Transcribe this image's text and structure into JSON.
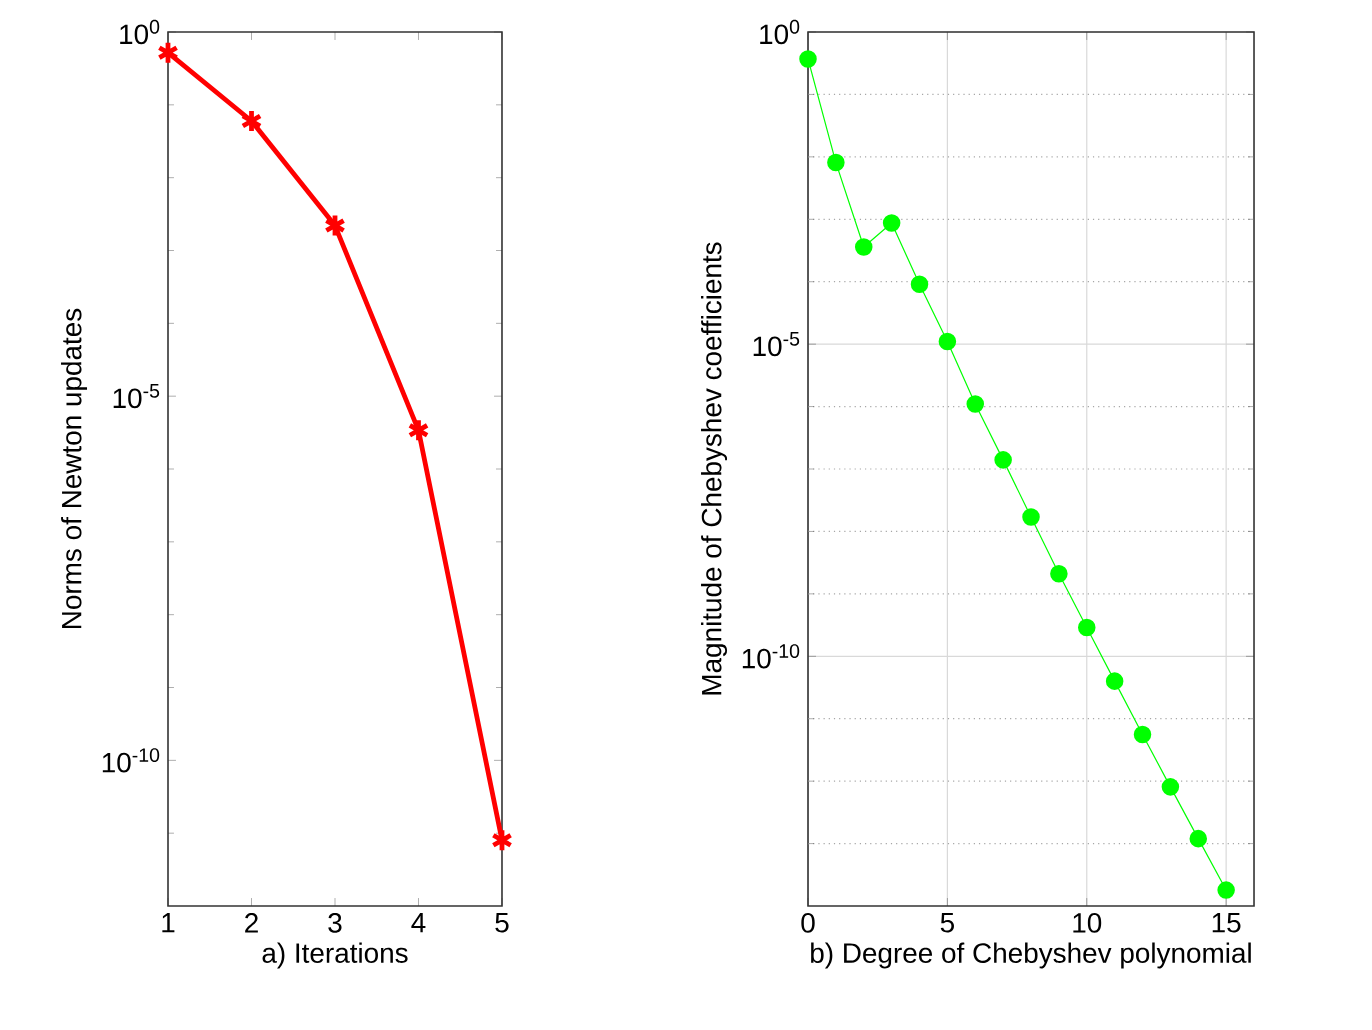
{
  "chart_data": [
    {
      "type": "line",
      "xlabel": "a) Iterations",
      "ylabel": "Norms of Newton updates",
      "log": "y",
      "grid": false,
      "marker": "cross",
      "line_style": "solid",
      "x": [
        1,
        2,
        3,
        4,
        5
      ],
      "series": [
        {
          "color": "#ff0000",
          "values": [
            0.52,
            0.06,
            0.0022,
            3.4e-06,
            8e-12
          ]
        }
      ],
      "xlim": [
        1,
        5
      ],
      "xticks": [
        1,
        2,
        3,
        4,
        5
      ],
      "ylim": [
        1e-12,
        1
      ],
      "yticks": [
        {
          "value": 1,
          "label": "10$^{0}$"
        },
        {
          "value": 0.1,
          "label": null
        },
        {
          "value": 0.01,
          "label": null
        },
        {
          "value": 0.001,
          "label": null
        },
        {
          "value": 0.0001,
          "label": null
        },
        {
          "value": 1e-05,
          "label": "10$^{-5}$"
        },
        {
          "value": 1e-06,
          "label": null
        },
        {
          "value": 1e-07,
          "label": null
        },
        {
          "value": 1e-08,
          "label": null
        },
        {
          "value": 1e-09,
          "label": null
        },
        {
          "value": 1e-10,
          "label": "10$^{-10}$"
        },
        {
          "value": 1e-11,
          "label": null
        }
      ]
    },
    {
      "type": "line",
      "xlabel": "b) Degree of Chebyshev polynomial",
      "ylabel": "Magnitude of Chebyshev coefficients",
      "log": "y",
      "grid": true,
      "marker": "circle",
      "line_style": "solid",
      "x": [
        0,
        1,
        2,
        3,
        4,
        5,
        6,
        7,
        8,
        9,
        10,
        11,
        12,
        13,
        14,
        15
      ],
      "series": [
        {
          "color": "#00ff00",
          "values": [
            0.37,
            0.0081,
            0.00036,
            0.00087,
            9.1e-05,
            1.1e-05,
            1.1e-06,
            1.4e-07,
            1.7e-08,
            2.1e-09,
            2.9e-10,
            4e-11,
            5.6e-12,
            8.1e-13,
            1.2e-13,
            1.8e-14
          ]
        }
      ],
      "xlim": [
        0,
        16
      ],
      "xticks": [
        0,
        5,
        10,
        15
      ],
      "ylim": [
        1e-14,
        1
      ],
      "yticks": [
        {
          "value": 1,
          "label": "10$^{0}$"
        },
        {
          "value": 0.1,
          "label": null
        },
        {
          "value": 0.01,
          "label": null
        },
        {
          "value": 0.001,
          "label": null
        },
        {
          "value": 0.0001,
          "label": null
        },
        {
          "value": 1e-05,
          "label": "10$^{-5}$"
        },
        {
          "value": 1e-06,
          "label": null
        },
        {
          "value": 1e-07,
          "label": null
        },
        {
          "value": 1e-08,
          "label": null
        },
        {
          "value": 1e-09,
          "label": null
        },
        {
          "value": 1e-10,
          "label": "10$^{-10}$"
        },
        {
          "value": 1e-11,
          "label": null
        },
        {
          "value": 1e-12,
          "label": null
        },
        {
          "value": 1e-13,
          "label": null
        }
      ]
    }
  ]
}
